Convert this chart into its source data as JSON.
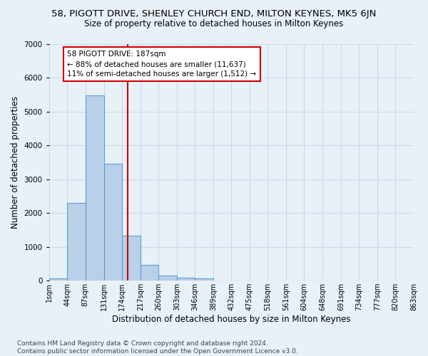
{
  "title": "58, PIGOTT DRIVE, SHENLEY CHURCH END, MILTON KEYNES, MK5 6JN",
  "subtitle": "Size of property relative to detached houses in Milton Keynes",
  "xlabel": "Distribution of detached houses by size in Milton Keynes",
  "ylabel": "Number of detached properties",
  "bar_values": [
    70,
    2300,
    5480,
    3450,
    1320,
    460,
    155,
    90,
    60,
    0,
    0,
    0,
    0,
    0,
    0,
    0,
    0,
    0,
    0,
    0
  ],
  "bin_edges": [
    1,
    44,
    87,
    131,
    174,
    217,
    260,
    303,
    346,
    389,
    432,
    475,
    518,
    561,
    604,
    648,
    691,
    734,
    777,
    820,
    863
  ],
  "tick_labels": [
    "1sqm",
    "44sqm",
    "87sqm",
    "131sqm",
    "174sqm",
    "217sqm",
    "260sqm",
    "303sqm",
    "346sqm",
    "389sqm",
    "432sqm",
    "475sqm",
    "518sqm",
    "561sqm",
    "604sqm",
    "648sqm",
    "691sqm",
    "734sqm",
    "777sqm",
    "820sqm",
    "863sqm"
  ],
  "bar_color": "#b8d0e8",
  "bar_edge_color": "#5a9fd4",
  "vline_x": 187,
  "vline_color": "#cc0000",
  "annotation_text": "58 PIGOTT DRIVE: 187sqm\n← 88% of detached houses are smaller (11,637)\n11% of semi-detached houses are larger (1,512) →",
  "annotation_box_color": "#ffffff",
  "annotation_box_edge": "#cc0000",
  "ylim": [
    0,
    7000
  ],
  "yticks": [
    0,
    1000,
    2000,
    3000,
    4000,
    5000,
    6000,
    7000
  ],
  "grid_color": "#c8d8ea",
  "bg_color": "#e8f0f8",
  "footer": "Contains HM Land Registry data © Crown copyright and database right 2024.\nContains public sector information licensed under the Open Government Licence v3.0.",
  "title_fontsize": 9.5,
  "subtitle_fontsize": 8.5,
  "xlabel_fontsize": 8.5,
  "ylabel_fontsize": 8.5,
  "tick_fontsize": 7,
  "annotation_fontsize": 7.5,
  "footer_fontsize": 6.5
}
